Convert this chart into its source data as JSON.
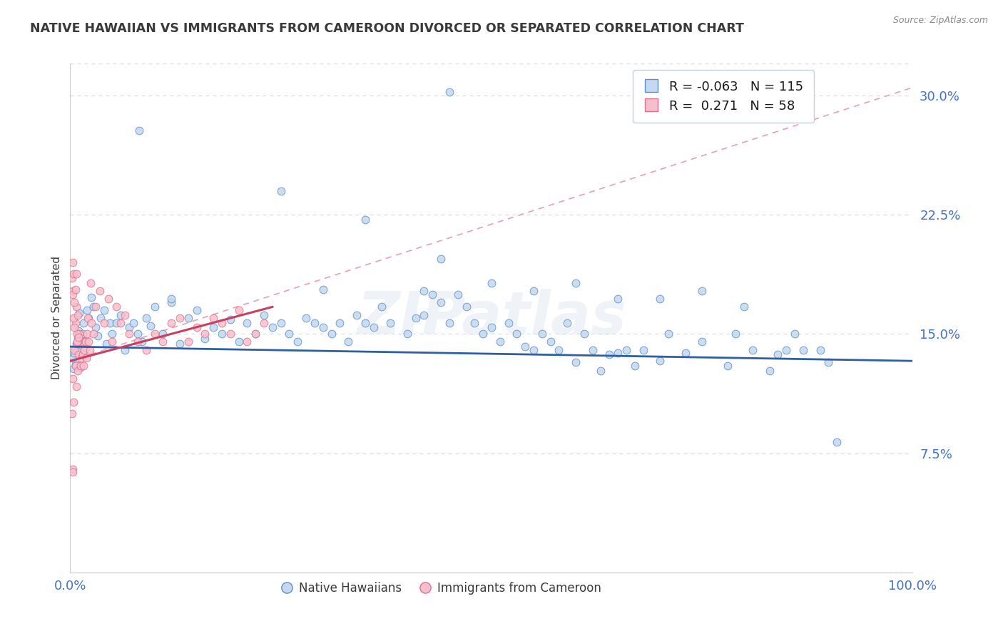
{
  "title": "NATIVE HAWAIIAN VS IMMIGRANTS FROM CAMEROON DIVORCED OR SEPARATED CORRELATION CHART",
  "source": "Source: ZipAtlas.com",
  "ylabel": "Divorced or Separated",
  "xlim": [
    0,
    1.0
  ],
  "ylim": [
    0.0,
    0.32
  ],
  "yticks": [
    0.075,
    0.15,
    0.225,
    0.3
  ],
  "ytick_labels": [
    "7.5%",
    "15.0%",
    "22.5%",
    "30.0%"
  ],
  "xticks": [
    0.0,
    1.0
  ],
  "xtick_labels": [
    "0.0%",
    "100.0%"
  ],
  "legend_r1": "-0.063",
  "legend_n1": "115",
  "legend_r2": "0.271",
  "legend_n2": "58",
  "blue_fill": "#c5d8ef",
  "blue_edge": "#5b8fc9",
  "pink_fill": "#f7bfcc",
  "pink_edge": "#e07090",
  "blue_line_color": "#2e5fa3",
  "pink_line_color": "#c84060",
  "dash_line_color": "#e8a0b0",
  "title_color": "#3a3a3a",
  "label_color": "#3a3a3a",
  "tick_color": "#4472c4",
  "watermark": "ZIPatlas",
  "grid_color": "#d8dde8",
  "background_color": "#ffffff",
  "blue_scatter": [
    [
      0.003,
      0.135
    ],
    [
      0.004,
      0.128
    ],
    [
      0.005,
      0.138
    ],
    [
      0.006,
      0.131
    ],
    [
      0.007,
      0.144
    ],
    [
      0.008,
      0.14
    ],
    [
      0.009,
      0.148
    ],
    [
      0.01,
      0.152
    ],
    [
      0.011,
      0.163
    ],
    [
      0.012,
      0.129
    ],
    [
      0.013,
      0.143
    ],
    [
      0.015,
      0.15
    ],
    [
      0.016,
      0.157
    ],
    [
      0.017,
      0.145
    ],
    [
      0.018,
      0.141
    ],
    [
      0.02,
      0.165
    ],
    [
      0.022,
      0.16
    ],
    [
      0.025,
      0.173
    ],
    [
      0.028,
      0.167
    ],
    [
      0.03,
      0.154
    ],
    [
      0.033,
      0.149
    ],
    [
      0.036,
      0.16
    ],
    [
      0.04,
      0.165
    ],
    [
      0.043,
      0.144
    ],
    [
      0.047,
      0.157
    ],
    [
      0.05,
      0.15
    ],
    [
      0.055,
      0.157
    ],
    [
      0.06,
      0.162
    ],
    [
      0.065,
      0.14
    ],
    [
      0.07,
      0.154
    ],
    [
      0.075,
      0.157
    ],
    [
      0.08,
      0.15
    ],
    [
      0.085,
      0.145
    ],
    [
      0.09,
      0.16
    ],
    [
      0.095,
      0.155
    ],
    [
      0.1,
      0.167
    ],
    [
      0.11,
      0.15
    ],
    [
      0.12,
      0.17
    ],
    [
      0.13,
      0.144
    ],
    [
      0.14,
      0.16
    ],
    [
      0.15,
      0.165
    ],
    [
      0.16,
      0.147
    ],
    [
      0.17,
      0.154
    ],
    [
      0.18,
      0.15
    ],
    [
      0.19,
      0.159
    ],
    [
      0.2,
      0.145
    ],
    [
      0.21,
      0.157
    ],
    [
      0.22,
      0.15
    ],
    [
      0.23,
      0.162
    ],
    [
      0.24,
      0.154
    ],
    [
      0.25,
      0.157
    ],
    [
      0.26,
      0.15
    ],
    [
      0.27,
      0.145
    ],
    [
      0.28,
      0.16
    ],
    [
      0.29,
      0.157
    ],
    [
      0.3,
      0.154
    ],
    [
      0.31,
      0.15
    ],
    [
      0.32,
      0.157
    ],
    [
      0.33,
      0.145
    ],
    [
      0.34,
      0.162
    ],
    [
      0.35,
      0.157
    ],
    [
      0.36,
      0.154
    ],
    [
      0.37,
      0.167
    ],
    [
      0.38,
      0.157
    ],
    [
      0.4,
      0.15
    ],
    [
      0.41,
      0.16
    ],
    [
      0.42,
      0.162
    ],
    [
      0.43,
      0.175
    ],
    [
      0.44,
      0.17
    ],
    [
      0.45,
      0.157
    ],
    [
      0.46,
      0.175
    ],
    [
      0.47,
      0.167
    ],
    [
      0.48,
      0.157
    ],
    [
      0.49,
      0.15
    ],
    [
      0.5,
      0.154
    ],
    [
      0.51,
      0.145
    ],
    [
      0.52,
      0.157
    ],
    [
      0.53,
      0.15
    ],
    [
      0.54,
      0.142
    ],
    [
      0.55,
      0.14
    ],
    [
      0.56,
      0.15
    ],
    [
      0.57,
      0.145
    ],
    [
      0.58,
      0.14
    ],
    [
      0.59,
      0.157
    ],
    [
      0.6,
      0.132
    ],
    [
      0.61,
      0.15
    ],
    [
      0.62,
      0.14
    ],
    [
      0.63,
      0.127
    ],
    [
      0.64,
      0.137
    ],
    [
      0.65,
      0.138
    ],
    [
      0.66,
      0.14
    ],
    [
      0.67,
      0.13
    ],
    [
      0.68,
      0.14
    ],
    [
      0.7,
      0.133
    ],
    [
      0.71,
      0.15
    ],
    [
      0.73,
      0.138
    ],
    [
      0.75,
      0.145
    ],
    [
      0.78,
      0.13
    ],
    [
      0.79,
      0.15
    ],
    [
      0.81,
      0.14
    ],
    [
      0.83,
      0.127
    ],
    [
      0.84,
      0.137
    ],
    [
      0.86,
      0.15
    ],
    [
      0.87,
      0.14
    ],
    [
      0.89,
      0.14
    ],
    [
      0.91,
      0.082
    ],
    [
      0.082,
      0.278
    ],
    [
      0.25,
      0.24
    ],
    [
      0.3,
      0.178
    ],
    [
      0.35,
      0.222
    ],
    [
      0.44,
      0.197
    ],
    [
      0.42,
      0.177
    ],
    [
      0.5,
      0.182
    ],
    [
      0.55,
      0.177
    ],
    [
      0.6,
      0.182
    ],
    [
      0.65,
      0.172
    ],
    [
      0.7,
      0.172
    ],
    [
      0.75,
      0.177
    ],
    [
      0.8,
      0.167
    ],
    [
      0.85,
      0.14
    ],
    [
      0.9,
      0.132
    ],
    [
      0.45,
      0.302
    ],
    [
      0.12,
      0.172
    ]
  ],
  "pink_scatter": [
    [
      0.002,
      0.1
    ],
    [
      0.003,
      0.122
    ],
    [
      0.004,
      0.107
    ],
    [
      0.005,
      0.14
    ],
    [
      0.006,
      0.13
    ],
    [
      0.007,
      0.117
    ],
    [
      0.008,
      0.144
    ],
    [
      0.009,
      0.127
    ],
    [
      0.01,
      0.137
    ],
    [
      0.011,
      0.15
    ],
    [
      0.012,
      0.13
    ],
    [
      0.013,
      0.135
    ],
    [
      0.014,
      0.145
    ],
    [
      0.015,
      0.137
    ],
    [
      0.016,
      0.13
    ],
    [
      0.017,
      0.14
    ],
    [
      0.018,
      0.145
    ],
    [
      0.019,
      0.135
    ],
    [
      0.02,
      0.15
    ],
    [
      0.021,
      0.16
    ],
    [
      0.022,
      0.145
    ],
    [
      0.023,
      0.14
    ],
    [
      0.024,
      0.182
    ],
    [
      0.025,
      0.157
    ],
    [
      0.028,
      0.15
    ],
    [
      0.03,
      0.167
    ],
    [
      0.035,
      0.177
    ],
    [
      0.04,
      0.157
    ],
    [
      0.045,
      0.172
    ],
    [
      0.05,
      0.145
    ],
    [
      0.055,
      0.167
    ],
    [
      0.06,
      0.157
    ],
    [
      0.065,
      0.162
    ],
    [
      0.07,
      0.15
    ],
    [
      0.08,
      0.145
    ],
    [
      0.09,
      0.14
    ],
    [
      0.1,
      0.15
    ],
    [
      0.11,
      0.145
    ],
    [
      0.12,
      0.157
    ],
    [
      0.13,
      0.16
    ],
    [
      0.14,
      0.145
    ],
    [
      0.15,
      0.154
    ],
    [
      0.16,
      0.15
    ],
    [
      0.17,
      0.16
    ],
    [
      0.18,
      0.157
    ],
    [
      0.19,
      0.15
    ],
    [
      0.2,
      0.165
    ],
    [
      0.21,
      0.145
    ],
    [
      0.22,
      0.15
    ],
    [
      0.23,
      0.157
    ],
    [
      0.003,
      0.177
    ],
    [
      0.006,
      0.157
    ],
    [
      0.007,
      0.167
    ],
    [
      0.008,
      0.15
    ],
    [
      0.009,
      0.145
    ],
    [
      0.003,
      0.175
    ],
    [
      0.004,
      0.16
    ],
    [
      0.003,
      0.065
    ],
    [
      0.005,
      0.154
    ],
    [
      0.002,
      0.185
    ],
    [
      0.003,
      0.195
    ],
    [
      0.004,
      0.188
    ],
    [
      0.005,
      0.17
    ],
    [
      0.006,
      0.178
    ],
    [
      0.007,
      0.188
    ],
    [
      0.008,
      0.145
    ],
    [
      0.009,
      0.162
    ],
    [
      0.01,
      0.148
    ],
    [
      0.003,
      0.063
    ]
  ]
}
